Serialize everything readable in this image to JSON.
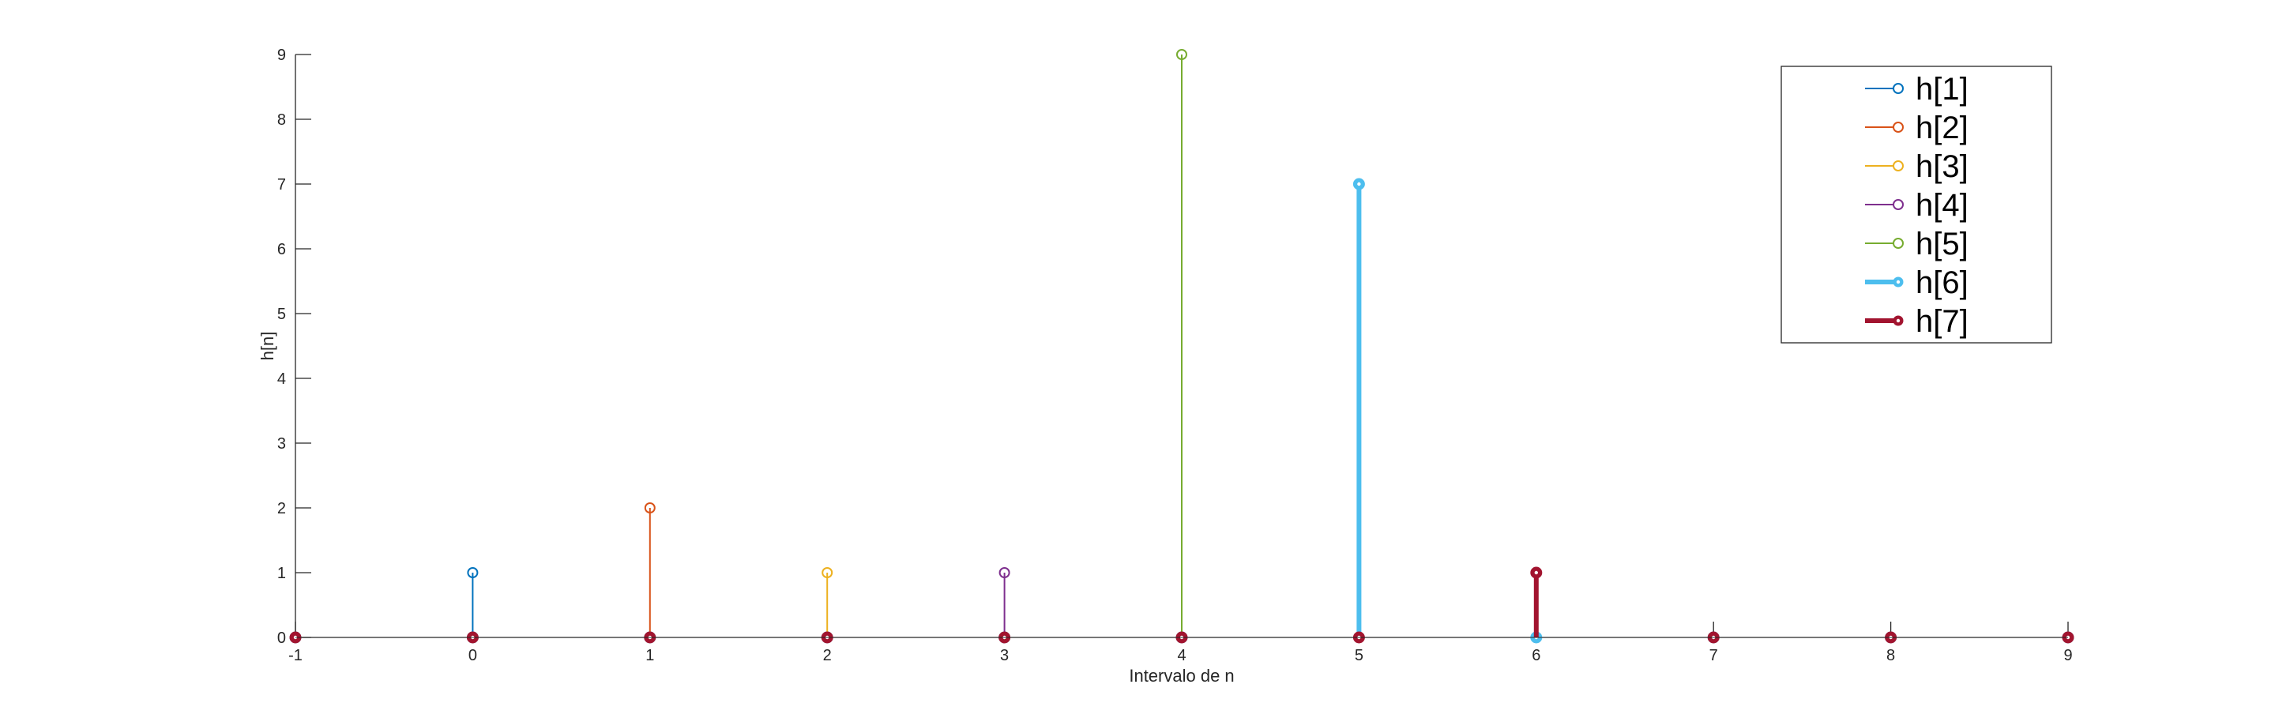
{
  "chart_data": {
    "type": "stem",
    "xlabel": "Intervalo de n",
    "ylabel": "h[n]",
    "xlim": [
      -1,
      9
    ],
    "ylim": [
      0,
      9
    ],
    "xticks": [
      -1,
      0,
      1,
      2,
      3,
      4,
      5,
      6,
      7,
      8,
      9
    ],
    "yticks": [
      0,
      1,
      2,
      3,
      4,
      5,
      6,
      7,
      8,
      9
    ],
    "grid": false,
    "legend_position": "top-right",
    "x": [
      -1,
      0,
      1,
      2,
      3,
      4,
      5,
      6,
      7,
      8,
      9
    ],
    "series": [
      {
        "name": "h[1]",
        "color": "#0072BD",
        "width": "thin",
        "marker": "circle",
        "values": [
          0,
          1,
          0,
          0,
          0,
          0,
          0,
          0,
          0,
          0,
          0
        ]
      },
      {
        "name": "h[2]",
        "color": "#D95319",
        "width": "thin",
        "marker": "circle",
        "values": [
          0,
          0,
          2,
          0,
          0,
          0,
          0,
          0,
          0,
          0,
          0
        ]
      },
      {
        "name": "h[3]",
        "color": "#EDB120",
        "width": "thin",
        "marker": "circle",
        "values": [
          0,
          0,
          0,
          1,
          0,
          0,
          0,
          0,
          0,
          0,
          0
        ]
      },
      {
        "name": "h[4]",
        "color": "#7E2F8E",
        "width": "thin",
        "marker": "circle",
        "values": [
          0,
          0,
          0,
          0,
          1,
          0,
          0,
          0,
          0,
          0,
          0
        ]
      },
      {
        "name": "h[5]",
        "color": "#77AC30",
        "width": "thin",
        "marker": "circle",
        "values": [
          0,
          0,
          0,
          0,
          0,
          9,
          0,
          0,
          0,
          0,
          0
        ]
      },
      {
        "name": "h[6]",
        "color": "#4DBEEE",
        "width": "thick",
        "marker": "filled-circle",
        "values": [
          0,
          0,
          0,
          0,
          0,
          0,
          7,
          0,
          0,
          0,
          0
        ]
      },
      {
        "name": "h[7]",
        "color": "#A2142F",
        "width": "thick",
        "marker": "filled-circle",
        "values": [
          0,
          0,
          0,
          0,
          0,
          0,
          0,
          1,
          0,
          0,
          0
        ]
      }
    ]
  }
}
